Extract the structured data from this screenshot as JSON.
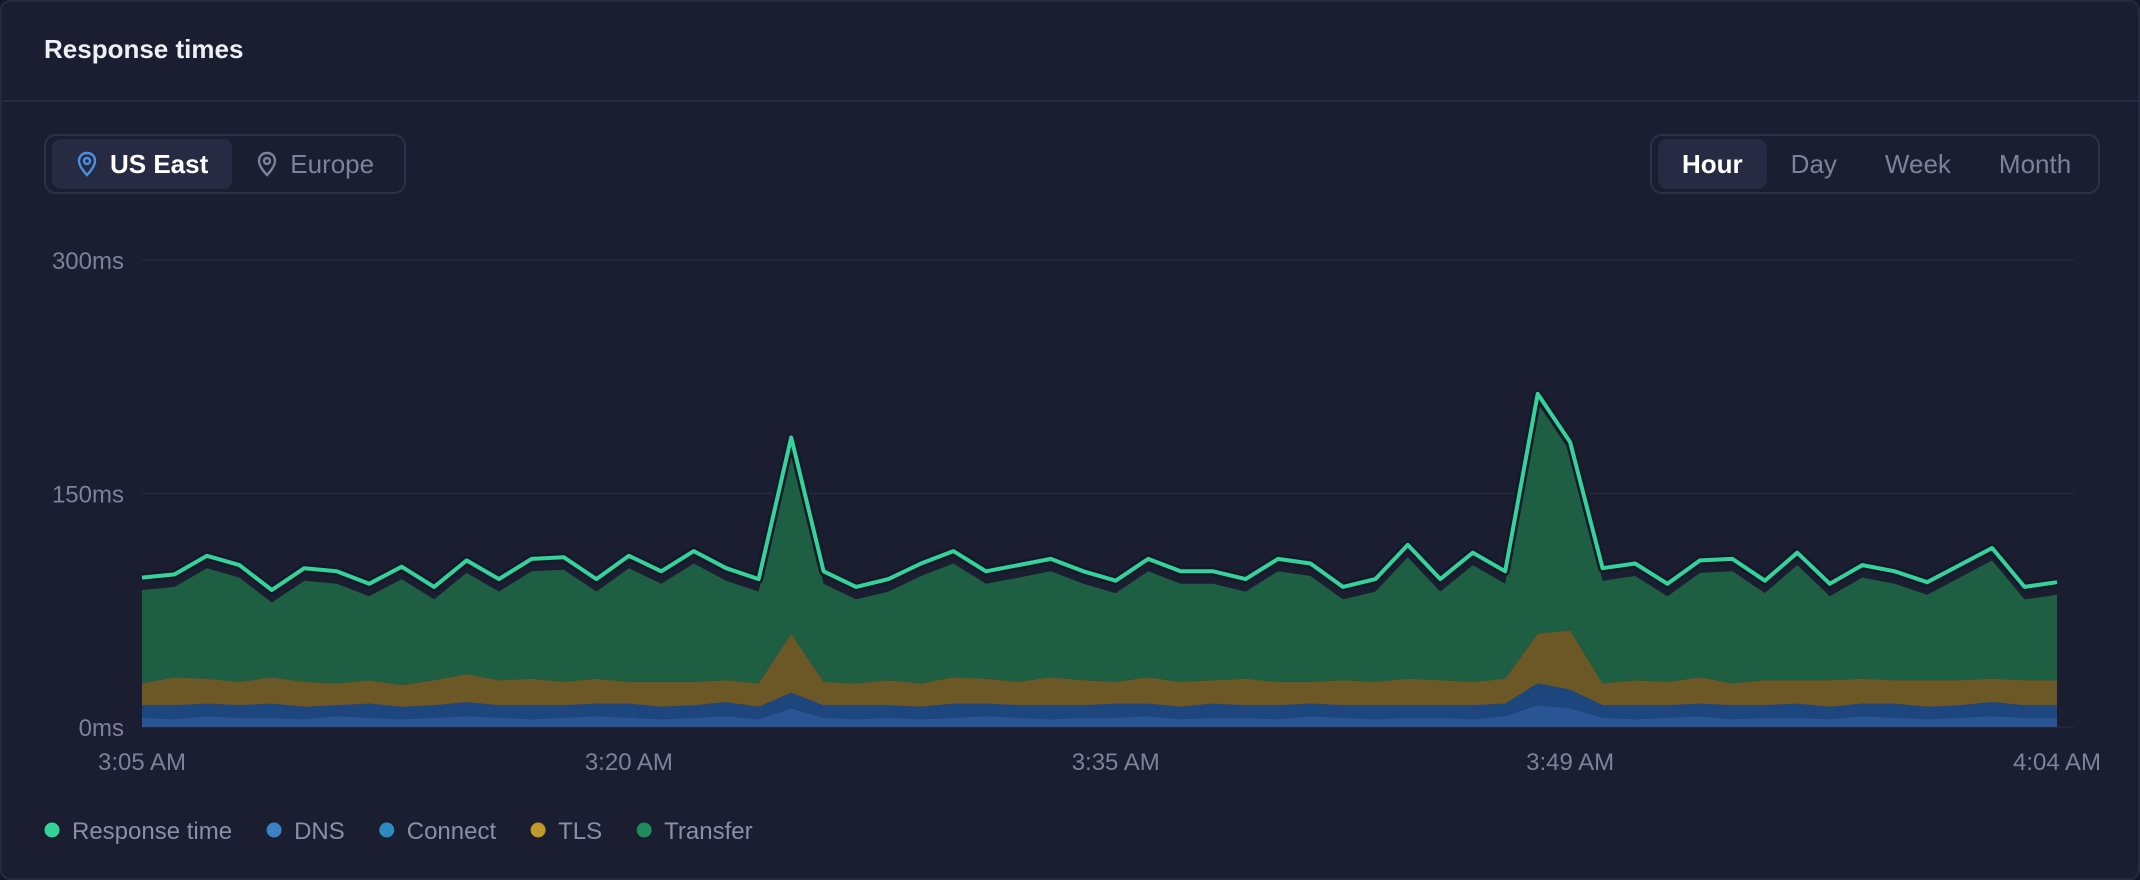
{
  "header": {
    "title": "Response times"
  },
  "regions": [
    "US East",
    "Europe"
  ],
  "ranges": [
    "Hour",
    "Day",
    "Week",
    "Month"
  ],
  "chart_data": {
    "type": "area",
    "x": [
      "3:05 AM",
      "3:06 AM",
      "3:07 AM",
      "3:08 AM",
      "3:09 AM",
      "3:10 AM",
      "3:11 AM",
      "3:12 AM",
      "3:13 AM",
      "3:14 AM",
      "3:15 AM",
      "3:16 AM",
      "3:17 AM",
      "3:18 AM",
      "3:19 AM",
      "3:20 AM",
      "3:21 AM",
      "3:22 AM",
      "3:23 AM",
      "3:24 AM",
      "3:25 AM",
      "3:26 AM",
      "3:27 AM",
      "3:28 AM",
      "3:29 AM",
      "3:30 AM",
      "3:31 AM",
      "3:32 AM",
      "3:33 AM",
      "3:34 AM",
      "3:35 AM",
      "3:36 AM",
      "3:37 AM",
      "3:38 AM",
      "3:39 AM",
      "3:40 AM",
      "3:41 AM",
      "3:42 AM",
      "3:43 AM",
      "3:44 AM",
      "3:45 AM",
      "3:46 AM",
      "3:47 AM",
      "3:48 AM",
      "3:49 AM",
      "3:50 AM",
      "3:51 AM",
      "3:52 AM",
      "3:53 AM",
      "3:54 AM",
      "3:55 AM",
      "3:56 AM",
      "3:57 AM",
      "3:58 AM",
      "3:59 AM",
      "4:00 AM",
      "4:01 AM",
      "4:02 AM",
      "4:03 AM",
      "4:04 AM"
    ],
    "xticks": [
      "3:05 AM",
      "3:20 AM",
      "3:35 AM",
      "3:49 AM",
      "4:04 AM"
    ],
    "ylim": [
      0,
      300
    ],
    "yticks": [
      {
        "value": 0,
        "label": "0ms"
      },
      {
        "value": 150,
        "label": "150ms"
      },
      {
        "value": 300,
        "label": "300ms"
      }
    ],
    "grid": true,
    "series": [
      {
        "name": "Response time",
        "type": "line",
        "color": "#34d399",
        "values": [
          96,
          98,
          110,
          104,
          88,
          102,
          100,
          92,
          103,
          90,
          107,
          95,
          108,
          109,
          95,
          110,
          100,
          113,
          102,
          95,
          186,
          100,
          90,
          95,
          105,
          113,
          100,
          104,
          108,
          100,
          94,
          108,
          100,
          100,
          95,
          108,
          105,
          90,
          95,
          117,
          95,
          112,
          100,
          214,
          183,
          102,
          105,
          92,
          107,
          108,
          94,
          112,
          92,
          104,
          100,
          93,
          104,
          115,
          90,
          93
        ]
      },
      {
        "name": "DNS",
        "type": "area",
        "color": "#2d5fa6",
        "legend_color": "#3b82c4",
        "values": [
          6,
          5,
          7,
          6,
          6,
          5,
          7,
          6,
          5,
          6,
          7,
          6,
          5,
          6,
          7,
          6,
          5,
          6,
          7,
          5,
          12,
          6,
          5,
          6,
          5,
          6,
          7,
          6,
          5,
          6,
          6,
          7,
          5,
          6,
          6,
          5,
          7,
          6,
          5,
          6,
          6,
          5,
          7,
          14,
          12,
          6,
          5,
          6,
          7,
          5,
          6,
          6,
          5,
          7,
          6,
          5,
          6,
          7,
          6,
          6
        ]
      },
      {
        "name": "Connect",
        "type": "area",
        "color": "#1f4e8c",
        "legend_color": "#2e8bc0",
        "values": [
          8,
          9,
          8,
          8,
          9,
          8,
          7,
          9,
          8,
          8,
          9,
          8,
          9,
          8,
          8,
          9,
          8,
          8,
          9,
          8,
          10,
          8,
          9,
          8,
          8,
          9,
          8,
          8,
          9,
          8,
          9,
          8,
          8,
          9,
          8,
          9,
          8,
          8,
          9,
          8,
          8,
          9,
          8,
          14,
          12,
          8,
          9,
          8,
          8,
          9,
          8,
          9,
          8,
          8,
          9,
          8,
          8,
          9,
          8,
          8
        ]
      },
      {
        "name": "TLS",
        "type": "area",
        "color": "#7a6326",
        "legend_color": "#c09a2a",
        "values": [
          14,
          18,
          16,
          15,
          17,
          16,
          14,
          15,
          14,
          16,
          18,
          16,
          17,
          15,
          16,
          14,
          16,
          15,
          14,
          15,
          38,
          15,
          14,
          16,
          15,
          17,
          16,
          15,
          18,
          16,
          14,
          17,
          16,
          15,
          17,
          15,
          14,
          16,
          15,
          17,
          16,
          15,
          16,
          32,
          38,
          14,
          16,
          15,
          17,
          14,
          16,
          15,
          17,
          16,
          15,
          17,
          16,
          15,
          16,
          16
        ]
      },
      {
        "name": "Transfer",
        "type": "area",
        "color": "#1e6a47",
        "legend_color": "#1f8a5a",
        "values": [
          60,
          58,
          71,
          67,
          48,
          65,
          64,
          54,
          68,
          52,
          65,
          57,
          69,
          72,
          56,
          73,
          63,
          76,
          64,
          59,
          118,
          63,
          54,
          57,
          69,
          73,
          61,
          67,
          68,
          62,
          57,
          68,
          63,
          62,
          56,
          71,
          68,
          52,
          58,
          78,
          57,
          75,
          61,
          148,
          115,
          66,
          67,
          55,
          67,
          72,
          56,
          74,
          54,
          65,
          62,
          55,
          66,
          76,
          52,
          55
        ]
      }
    ]
  }
}
